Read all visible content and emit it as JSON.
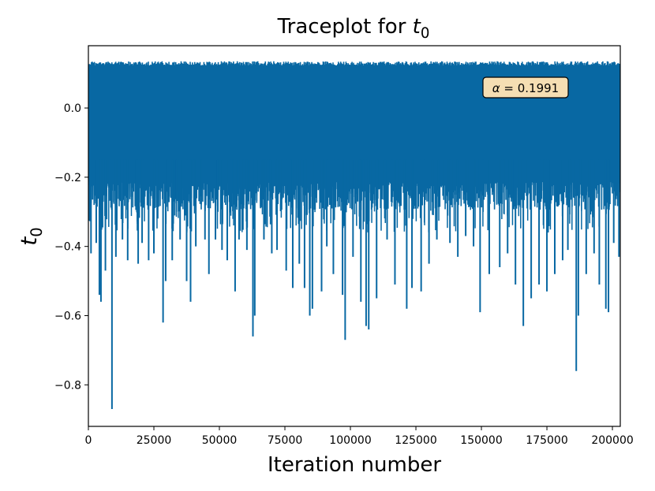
{
  "chart_data": {
    "type": "line",
    "title": "Traceplot for t0",
    "title_text": "Traceplot for ",
    "title_var": "t",
    "title_sub": "0",
    "xlabel": "Iteration number",
    "ylabel_var": "t",
    "ylabel_sub": "0",
    "xlim": [
      0,
      203000
    ],
    "ylim": [
      -0.92,
      0.18
    ],
    "x_ticks": [
      0,
      25000,
      50000,
      75000,
      100000,
      125000,
      150000,
      175000,
      200000
    ],
    "x_tick_labels": [
      "0",
      "25000",
      "50000",
      "75000",
      "100000",
      "125000",
      "150000",
      "175000",
      "200000"
    ],
    "y_ticks": [
      0.0,
      -0.2,
      -0.4,
      -0.6,
      -0.8
    ],
    "y_tick_labels": [
      "0.0",
      "−0.2",
      "−0.4",
      "−0.6",
      "−0.8"
    ],
    "series": [
      {
        "name": "t0",
        "color": "#0868a3",
        "band_top": 0.135,
        "band_bottom": -0.27,
        "min_value": -0.87,
        "spikes": [
          {
            "x": 1000,
            "y": -0.42
          },
          {
            "x": 3000,
            "y": -0.39
          },
          {
            "x": 4200,
            "y": -0.54
          },
          {
            "x": 4800,
            "y": -0.56
          },
          {
            "x": 6500,
            "y": -0.47
          },
          {
            "x": 9000,
            "y": -0.87
          },
          {
            "x": 10500,
            "y": -0.43
          },
          {
            "x": 13000,
            "y": -0.38
          },
          {
            "x": 15000,
            "y": -0.44
          },
          {
            "x": 19000,
            "y": -0.45
          },
          {
            "x": 20500,
            "y": -0.39
          },
          {
            "x": 23000,
            "y": -0.44
          },
          {
            "x": 25000,
            "y": -0.42
          },
          {
            "x": 28500,
            "y": -0.62
          },
          {
            "x": 29500,
            "y": -0.5
          },
          {
            "x": 32000,
            "y": -0.44
          },
          {
            "x": 35000,
            "y": -0.38
          },
          {
            "x": 37500,
            "y": -0.5
          },
          {
            "x": 39000,
            "y": -0.56
          },
          {
            "x": 41000,
            "y": -0.4
          },
          {
            "x": 44500,
            "y": -0.38
          },
          {
            "x": 46000,
            "y": -0.48
          },
          {
            "x": 48500,
            "y": -0.38
          },
          {
            "x": 51000,
            "y": -0.41
          },
          {
            "x": 53000,
            "y": -0.44
          },
          {
            "x": 56000,
            "y": -0.53
          },
          {
            "x": 57500,
            "y": -0.38
          },
          {
            "x": 60500,
            "y": -0.41
          },
          {
            "x": 62800,
            "y": -0.66
          },
          {
            "x": 63500,
            "y": -0.6
          },
          {
            "x": 67000,
            "y": -0.38
          },
          {
            "x": 70000,
            "y": -0.42
          },
          {
            "x": 72000,
            "y": -0.41
          },
          {
            "x": 75500,
            "y": -0.47
          },
          {
            "x": 78000,
            "y": -0.52
          },
          {
            "x": 80500,
            "y": -0.45
          },
          {
            "x": 82500,
            "y": -0.52
          },
          {
            "x": 84500,
            "y": -0.6
          },
          {
            "x": 85500,
            "y": -0.58
          },
          {
            "x": 89000,
            "y": -0.53
          },
          {
            "x": 91000,
            "y": -0.4
          },
          {
            "x": 93500,
            "y": -0.48
          },
          {
            "x": 97000,
            "y": -0.54
          },
          {
            "x": 98000,
            "y": -0.67
          },
          {
            "x": 101000,
            "y": -0.43
          },
          {
            "x": 104000,
            "y": -0.56
          },
          {
            "x": 106000,
            "y": -0.63
          },
          {
            "x": 107000,
            "y": -0.64
          },
          {
            "x": 110000,
            "y": -0.55
          },
          {
            "x": 114000,
            "y": -0.38
          },
          {
            "x": 117000,
            "y": -0.51
          },
          {
            "x": 121500,
            "y": -0.58
          },
          {
            "x": 123500,
            "y": -0.52
          },
          {
            "x": 127000,
            "y": -0.53
          },
          {
            "x": 130000,
            "y": -0.45
          },
          {
            "x": 133000,
            "y": -0.38
          },
          {
            "x": 138000,
            "y": -0.39
          },
          {
            "x": 141000,
            "y": -0.43
          },
          {
            "x": 144000,
            "y": -0.37
          },
          {
            "x": 147000,
            "y": -0.4
          },
          {
            "x": 149500,
            "y": -0.59
          },
          {
            "x": 153000,
            "y": -0.48
          },
          {
            "x": 157000,
            "y": -0.46
          },
          {
            "x": 160000,
            "y": -0.42
          },
          {
            "x": 163000,
            "y": -0.51
          },
          {
            "x": 166000,
            "y": -0.63
          },
          {
            "x": 169000,
            "y": -0.55
          },
          {
            "x": 172000,
            "y": -0.51
          },
          {
            "x": 175000,
            "y": -0.53
          },
          {
            "x": 178000,
            "y": -0.48
          },
          {
            "x": 181000,
            "y": -0.44
          },
          {
            "x": 183000,
            "y": -0.41
          },
          {
            "x": 186200,
            "y": -0.76
          },
          {
            "x": 187000,
            "y": -0.6
          },
          {
            "x": 190000,
            "y": -0.48
          },
          {
            "x": 193000,
            "y": -0.42
          },
          {
            "x": 195000,
            "y": -0.51
          },
          {
            "x": 197500,
            "y": -0.58
          },
          {
            "x": 198500,
            "y": -0.59
          },
          {
            "x": 200500,
            "y": -0.39
          },
          {
            "x": 202500,
            "y": -0.43
          }
        ]
      }
    ],
    "annotation": {
      "var": "α",
      "text": " = 0.1991",
      "value": 0.1991,
      "position": "top-right",
      "box_color": "#f5deb3"
    },
    "grid": false,
    "legend": "none"
  }
}
